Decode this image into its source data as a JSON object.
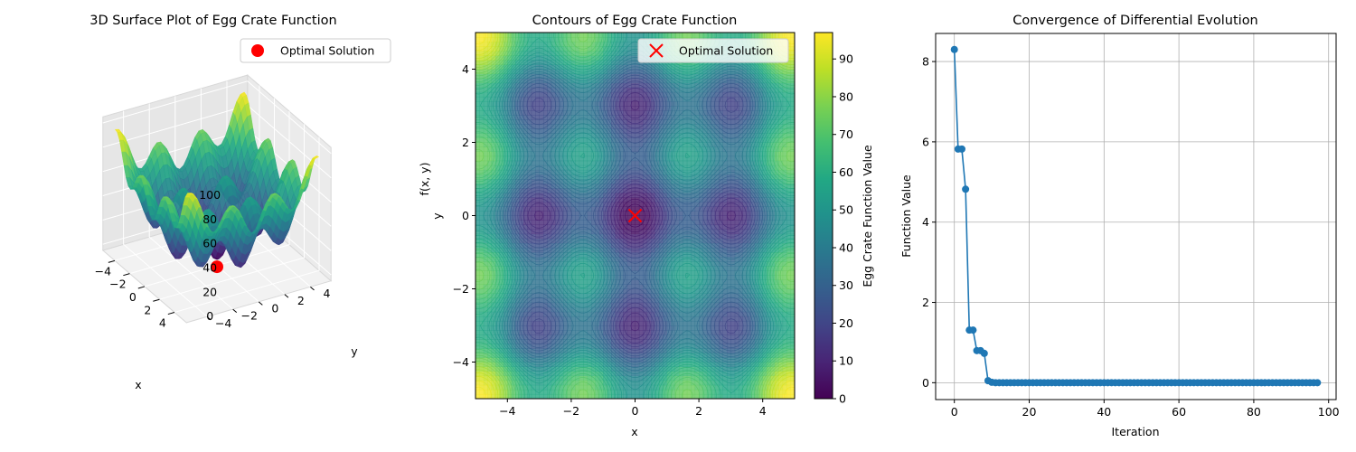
{
  "colors": {
    "viridis": [
      "#440154",
      "#482475",
      "#414487",
      "#355f8d",
      "#2a788e",
      "#21918c",
      "#22a884",
      "#44bf70",
      "#7ad151",
      "#bddf26",
      "#fde725"
    ],
    "marker_red": "#ff0000",
    "line_blue": "#1f77b4",
    "grid": "#b0b0b0"
  },
  "chart_data": [
    {
      "type": "surface3d",
      "title": "3D Surface Plot of Egg Crate Function",
      "xlabel": "x",
      "ylabel": "y",
      "zlabel": "f(x, y)",
      "xlim": [
        -5,
        5
      ],
      "ylim": [
        -5,
        5
      ],
      "zlim": [
        0,
        100
      ],
      "xticks": [
        "−4",
        "−2",
        "0",
        "2",
        "4"
      ],
      "yticks": [
        "−4",
        "−2",
        "0",
        "2",
        "4"
      ],
      "zticks": [
        "0",
        "20",
        "40",
        "60",
        "80",
        "100"
      ],
      "legend": {
        "label": "Optimal Solution",
        "placement": "top-right"
      },
      "optimal_point": {
        "x": 0,
        "y": 0,
        "z": 0
      }
    },
    {
      "type": "contour",
      "title": "Contours of Egg Crate Function",
      "xlabel": "x",
      "ylabel": "y",
      "xlim": [
        -5,
        5
      ],
      "ylim": [
        -5,
        5
      ],
      "xticks": [
        "−4",
        "−2",
        "0",
        "2",
        "4"
      ],
      "yticks": [
        "−4",
        "−2",
        "0",
        "2",
        "4"
      ],
      "colorbar": {
        "label": "Egg Crate Function Value",
        "range": [
          0,
          97
        ],
        "ticks": [
          "0",
          "10",
          "20",
          "30",
          "40",
          "50",
          "60",
          "70",
          "80",
          "90"
        ]
      },
      "legend": {
        "label": "Optimal Solution",
        "placement": "top-right"
      },
      "optimal_point": {
        "x": 0,
        "y": 0
      }
    },
    {
      "type": "line",
      "title": "Convergence of Differential Evolution",
      "xlabel": "Iteration",
      "ylabel": "Function Value",
      "xlim": [
        -5,
        102
      ],
      "ylim": [
        -0.42,
        8.7
      ],
      "xticks": [
        "0",
        "20",
        "40",
        "60",
        "80",
        "100"
      ],
      "yticks": [
        "0",
        "2",
        "4",
        "6",
        "8"
      ],
      "grid": true,
      "series": [
        {
          "x": [
            0,
            1,
            2,
            3,
            4,
            5,
            6,
            7,
            8,
            9,
            10,
            11,
            12,
            13,
            14,
            15,
            16,
            17,
            18,
            19,
            20,
            21,
            22,
            23,
            24,
            25,
            26,
            27,
            28,
            29,
            30,
            31,
            32,
            33,
            34,
            35,
            36,
            37,
            38,
            39,
            40,
            41,
            42,
            43,
            44,
            45,
            46,
            47,
            48,
            49,
            50,
            51,
            52,
            53,
            54,
            55,
            56,
            57,
            58,
            59,
            60,
            61,
            62,
            63,
            64,
            65,
            66,
            67,
            68,
            69,
            70,
            71,
            72,
            73,
            74,
            75,
            76,
            77,
            78,
            79,
            80,
            81,
            82,
            83,
            84,
            85,
            86,
            87,
            88,
            89,
            90,
            91,
            92,
            93,
            94,
            95,
            96,
            97
          ],
          "values": [
            8.3,
            5.82,
            5.82,
            4.82,
            1.31,
            1.31,
            0.8,
            0.8,
            0.73,
            0.05,
            0.01,
            0,
            0,
            0,
            0,
            0,
            0,
            0,
            0,
            0,
            0,
            0,
            0,
            0,
            0,
            0,
            0,
            0,
            0,
            0,
            0,
            0,
            0,
            0,
            0,
            0,
            0,
            0,
            0,
            0,
            0,
            0,
            0,
            0,
            0,
            0,
            0,
            0,
            0,
            0,
            0,
            0,
            0,
            0,
            0,
            0,
            0,
            0,
            0,
            0,
            0,
            0,
            0,
            0,
            0,
            0,
            0,
            0,
            0,
            0,
            0,
            0,
            0,
            0,
            0,
            0,
            0,
            0,
            0,
            0,
            0,
            0,
            0,
            0,
            0,
            0,
            0,
            0,
            0,
            0,
            0,
            0,
            0,
            0,
            0,
            0,
            0,
            0
          ]
        }
      ]
    }
  ]
}
